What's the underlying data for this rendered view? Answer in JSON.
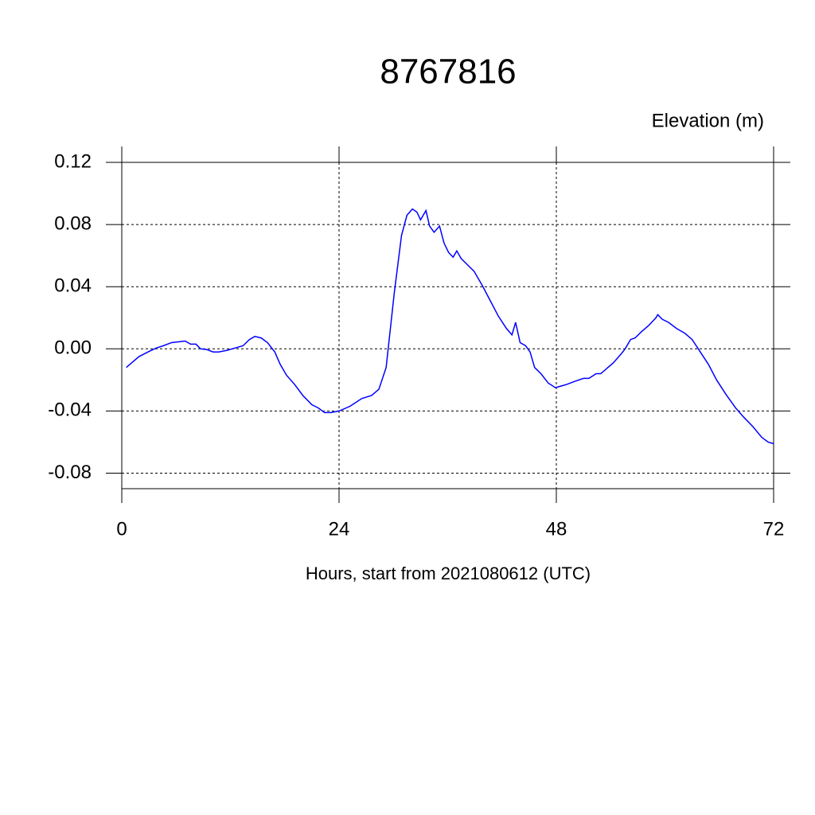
{
  "chart_data": {
    "type": "line",
    "title": "8767816",
    "subtitle": "Elevation (m)",
    "x_label": "Hours, start from 2021080612 (UTC)",
    "x": [
      0.5,
      1.1,
      1.9,
      2.9,
      3.8,
      4.6,
      5.5,
      7.0,
      7.6,
      8.2,
      8.7,
      9.4,
      10.1,
      10.7,
      11.6,
      12.5,
      13.4,
      14.1,
      14.7,
      15.4,
      16.1,
      16.9,
      17.5,
      18.2,
      19.1,
      20.0,
      21.0,
      21.7,
      22.4,
      23.1,
      24.0,
      25.2,
      26.5,
      27.6,
      28.4,
      29.2,
      30.1,
      30.9,
      31.5,
      32.1,
      32.6,
      33.0,
      33.6,
      34.0,
      34.5,
      35.1,
      35.6,
      36.1,
      36.6,
      37.0,
      37.5,
      38.2,
      38.9,
      39.8,
      40.7,
      41.6,
      42.5,
      43.1,
      43.5,
      44.0,
      44.6,
      45.1,
      45.6,
      46.3,
      47.1,
      47.9,
      48.5,
      49.1,
      50.0,
      51.0,
      51.6,
      52.4,
      52.9,
      53.5,
      54.3,
      55.2,
      55.6,
      56.2,
      56.7,
      57.4,
      58.2,
      59.0,
      59.2,
      59.7,
      60.4,
      61.3,
      62.2,
      63.0,
      63.9,
      64.8,
      65.7,
      66.7,
      67.8,
      68.7,
      69.7,
      70.7,
      71.4,
      72.0
    ],
    "series": [
      {
        "name": "Elevation",
        "color": "#0000ff",
        "values": [
          -0.012,
          -0.009,
          -0.005,
          -0.002,
          0.0005,
          0.002,
          0.004,
          0.005,
          0.003,
          0.003,
          0.0,
          -0.0005,
          -0.002,
          -0.002,
          -0.001,
          0.0005,
          0.002,
          0.006,
          0.008,
          0.007,
          0.004,
          -0.002,
          -0.01,
          -0.017,
          -0.023,
          -0.03,
          -0.036,
          -0.038,
          -0.041,
          -0.041,
          -0.04,
          -0.037,
          -0.032,
          -0.03,
          -0.026,
          -0.012,
          0.036,
          0.073,
          0.086,
          0.09,
          0.088,
          0.083,
          0.089,
          0.079,
          0.075,
          0.079,
          0.068,
          0.062,
          0.059,
          0.063,
          0.058,
          0.054,
          0.05,
          0.041,
          0.031,
          0.021,
          0.013,
          0.009,
          0.017,
          0.004,
          0.002,
          -0.002,
          -0.012,
          -0.016,
          -0.022,
          -0.025,
          -0.024,
          -0.023,
          -0.021,
          -0.019,
          -0.019,
          -0.016,
          -0.016,
          -0.013,
          -0.009,
          -0.003,
          0.0,
          0.006,
          0.007,
          0.011,
          0.015,
          0.02,
          0.022,
          0.019,
          0.017,
          0.013,
          0.01,
          0.006,
          -0.002,
          -0.01,
          -0.02,
          -0.029,
          -0.038,
          -0.044,
          -0.05,
          -0.057,
          -0.06,
          -0.061
        ]
      }
    ],
    "xlim": [
      0,
      72
    ],
    "xticks": [
      0,
      24,
      48,
      72
    ],
    "ylim": [
      -0.09,
      0.12
    ],
    "yticks": [
      0.12,
      0.08,
      0.04,
      {
        "value": 0,
        "label": "0.00"
      },
      -0.04,
      -0.08
    ],
    "grid": true
  }
}
